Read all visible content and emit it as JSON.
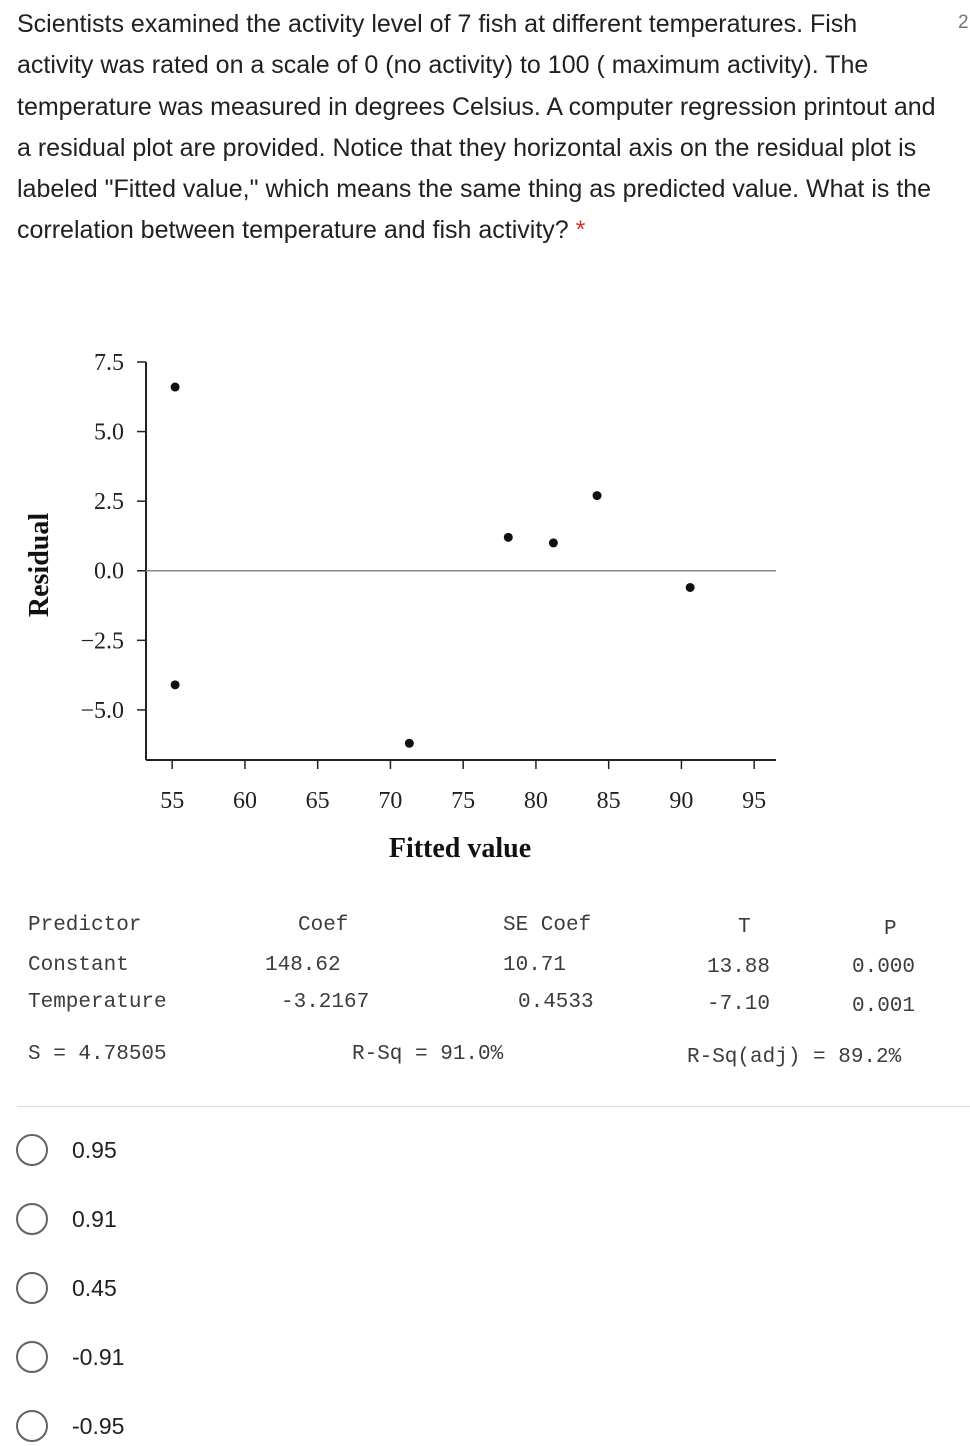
{
  "question": {
    "text": "Scientists examined the activity level of 7 fish at different temperatures. Fish activity was rated on a scale of 0 (no activity) to 100 ( maximum activity). The temperature was measured in degrees Celsius. A computer regression printout and a residual plot are provided. Notice that they horizontal axis on the residual plot is labeled \"Fitted value,\" which means the same thing as predicted value. What is the correlation between temperature and fish activity?",
    "required_mark": "*",
    "points": "2"
  },
  "chart_data": {
    "type": "scatter",
    "title": "",
    "xlabel": "Fitted value",
    "ylabel": "Residual",
    "xlim": [
      53.2,
      96.5
    ],
    "ylim": [
      -6.8,
      7.5
    ],
    "xticks": [
      "55",
      "60",
      "65",
      "70",
      "75",
      "80",
      "85",
      "90",
      "95"
    ],
    "yticks": [
      "7.5",
      "5.0",
      "2.5",
      "0.0",
      "−2.5",
      "−5.0"
    ],
    "points": [
      {
        "x": 55.2,
        "y": 6.6
      },
      {
        "x": 55.2,
        "y": -4.1
      },
      {
        "x": 71.3,
        "y": -6.2
      },
      {
        "x": 78.1,
        "y": 1.2
      },
      {
        "x": 81.2,
        "y": 1.0
      },
      {
        "x": 84.2,
        "y": 2.7
      },
      {
        "x": 90.6,
        "y": -0.6
      }
    ],
    "reference_line_y": 0
  },
  "regression": {
    "headers": [
      "Predictor",
      "Coef",
      "SE Coef",
      "T",
      "P"
    ],
    "rows": [
      [
        "Constant",
        "148.62",
        "10.71",
        "13.88",
        "0.000"
      ],
      [
        "Temperature",
        "-3.2167",
        "0.4533",
        "-7.10",
        "0.001"
      ]
    ],
    "s": "S = 4.78505",
    "rsq": "R-Sq = 91.0%",
    "rsq_adj": "R-Sq(adj) = 89.2%"
  },
  "options": [
    "0.95",
    "0.91",
    "0.45",
    "-0.91",
    "-0.95"
  ]
}
